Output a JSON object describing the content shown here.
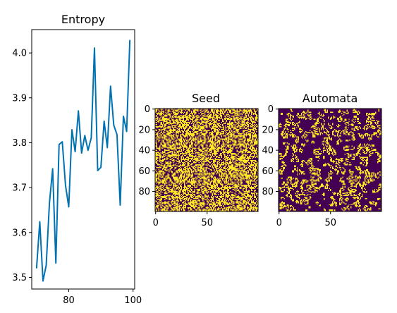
{
  "chart_data": [
    {
      "type": "line",
      "title": "Entropy",
      "xlabel": "",
      "ylabel": "",
      "xlim": [
        68.5,
        100.5
      ],
      "ylim": [
        3.474,
        4.052
      ],
      "x_ticks": [
        80,
        100
      ],
      "y_ticks": [
        3.5,
        3.6,
        3.7,
        3.8,
        3.9,
        4.0
      ],
      "x_tick_labels": [
        "80",
        "100"
      ],
      "y_tick_labels": [
        "3.5",
        "3.6",
        "3.7",
        "3.8",
        "3.9",
        "4.0"
      ],
      "grid": false,
      "line_color": "#0072b2",
      "series": [
        {
          "x": [
            70,
            71,
            72,
            73,
            74,
            75,
            76,
            77,
            78,
            79,
            80,
            81,
            82,
            83,
            84,
            85,
            86,
            87,
            88,
            89,
            90,
            91,
            92,
            93,
            94,
            95,
            96,
            97,
            98,
            99
          ],
          "y": [
            3.52,
            3.624,
            3.492,
            3.527,
            3.665,
            3.742,
            3.532,
            3.796,
            3.802,
            3.705,
            3.657,
            3.829,
            3.78,
            3.871,
            3.777,
            3.816,
            3.783,
            3.811,
            4.011,
            3.738,
            3.745,
            3.848,
            3.789,
            3.926,
            3.839,
            3.818,
            3.661,
            3.859,
            3.825,
            4.029
          ]
        }
      ]
    },
    {
      "type": "heatmap",
      "title": "Seed",
      "rows": 100,
      "cols": 100,
      "pattern": "random",
      "density": 0.55,
      "x_ticks": [
        0,
        50
      ],
      "y_ticks": [
        0,
        20,
        40,
        60,
        80
      ],
      "x_tick_labels": [
        "0",
        "50"
      ],
      "y_tick_labels": [
        "0",
        "20",
        "40",
        "60",
        "80"
      ],
      "low_color": "#440154",
      "high_color": "#fde725"
    },
    {
      "type": "heatmap",
      "title": "Automata",
      "rows": 100,
      "cols": 100,
      "pattern": "cellular-automaton",
      "density": 0.22,
      "x_ticks": [
        0,
        50
      ],
      "y_ticks": [
        0,
        20,
        40,
        60,
        80
      ],
      "x_tick_labels": [
        "0",
        "50"
      ],
      "y_tick_labels": [
        "0",
        "20",
        "40",
        "60",
        "80"
      ],
      "low_color": "#440154",
      "high_color": "#fde725"
    }
  ]
}
